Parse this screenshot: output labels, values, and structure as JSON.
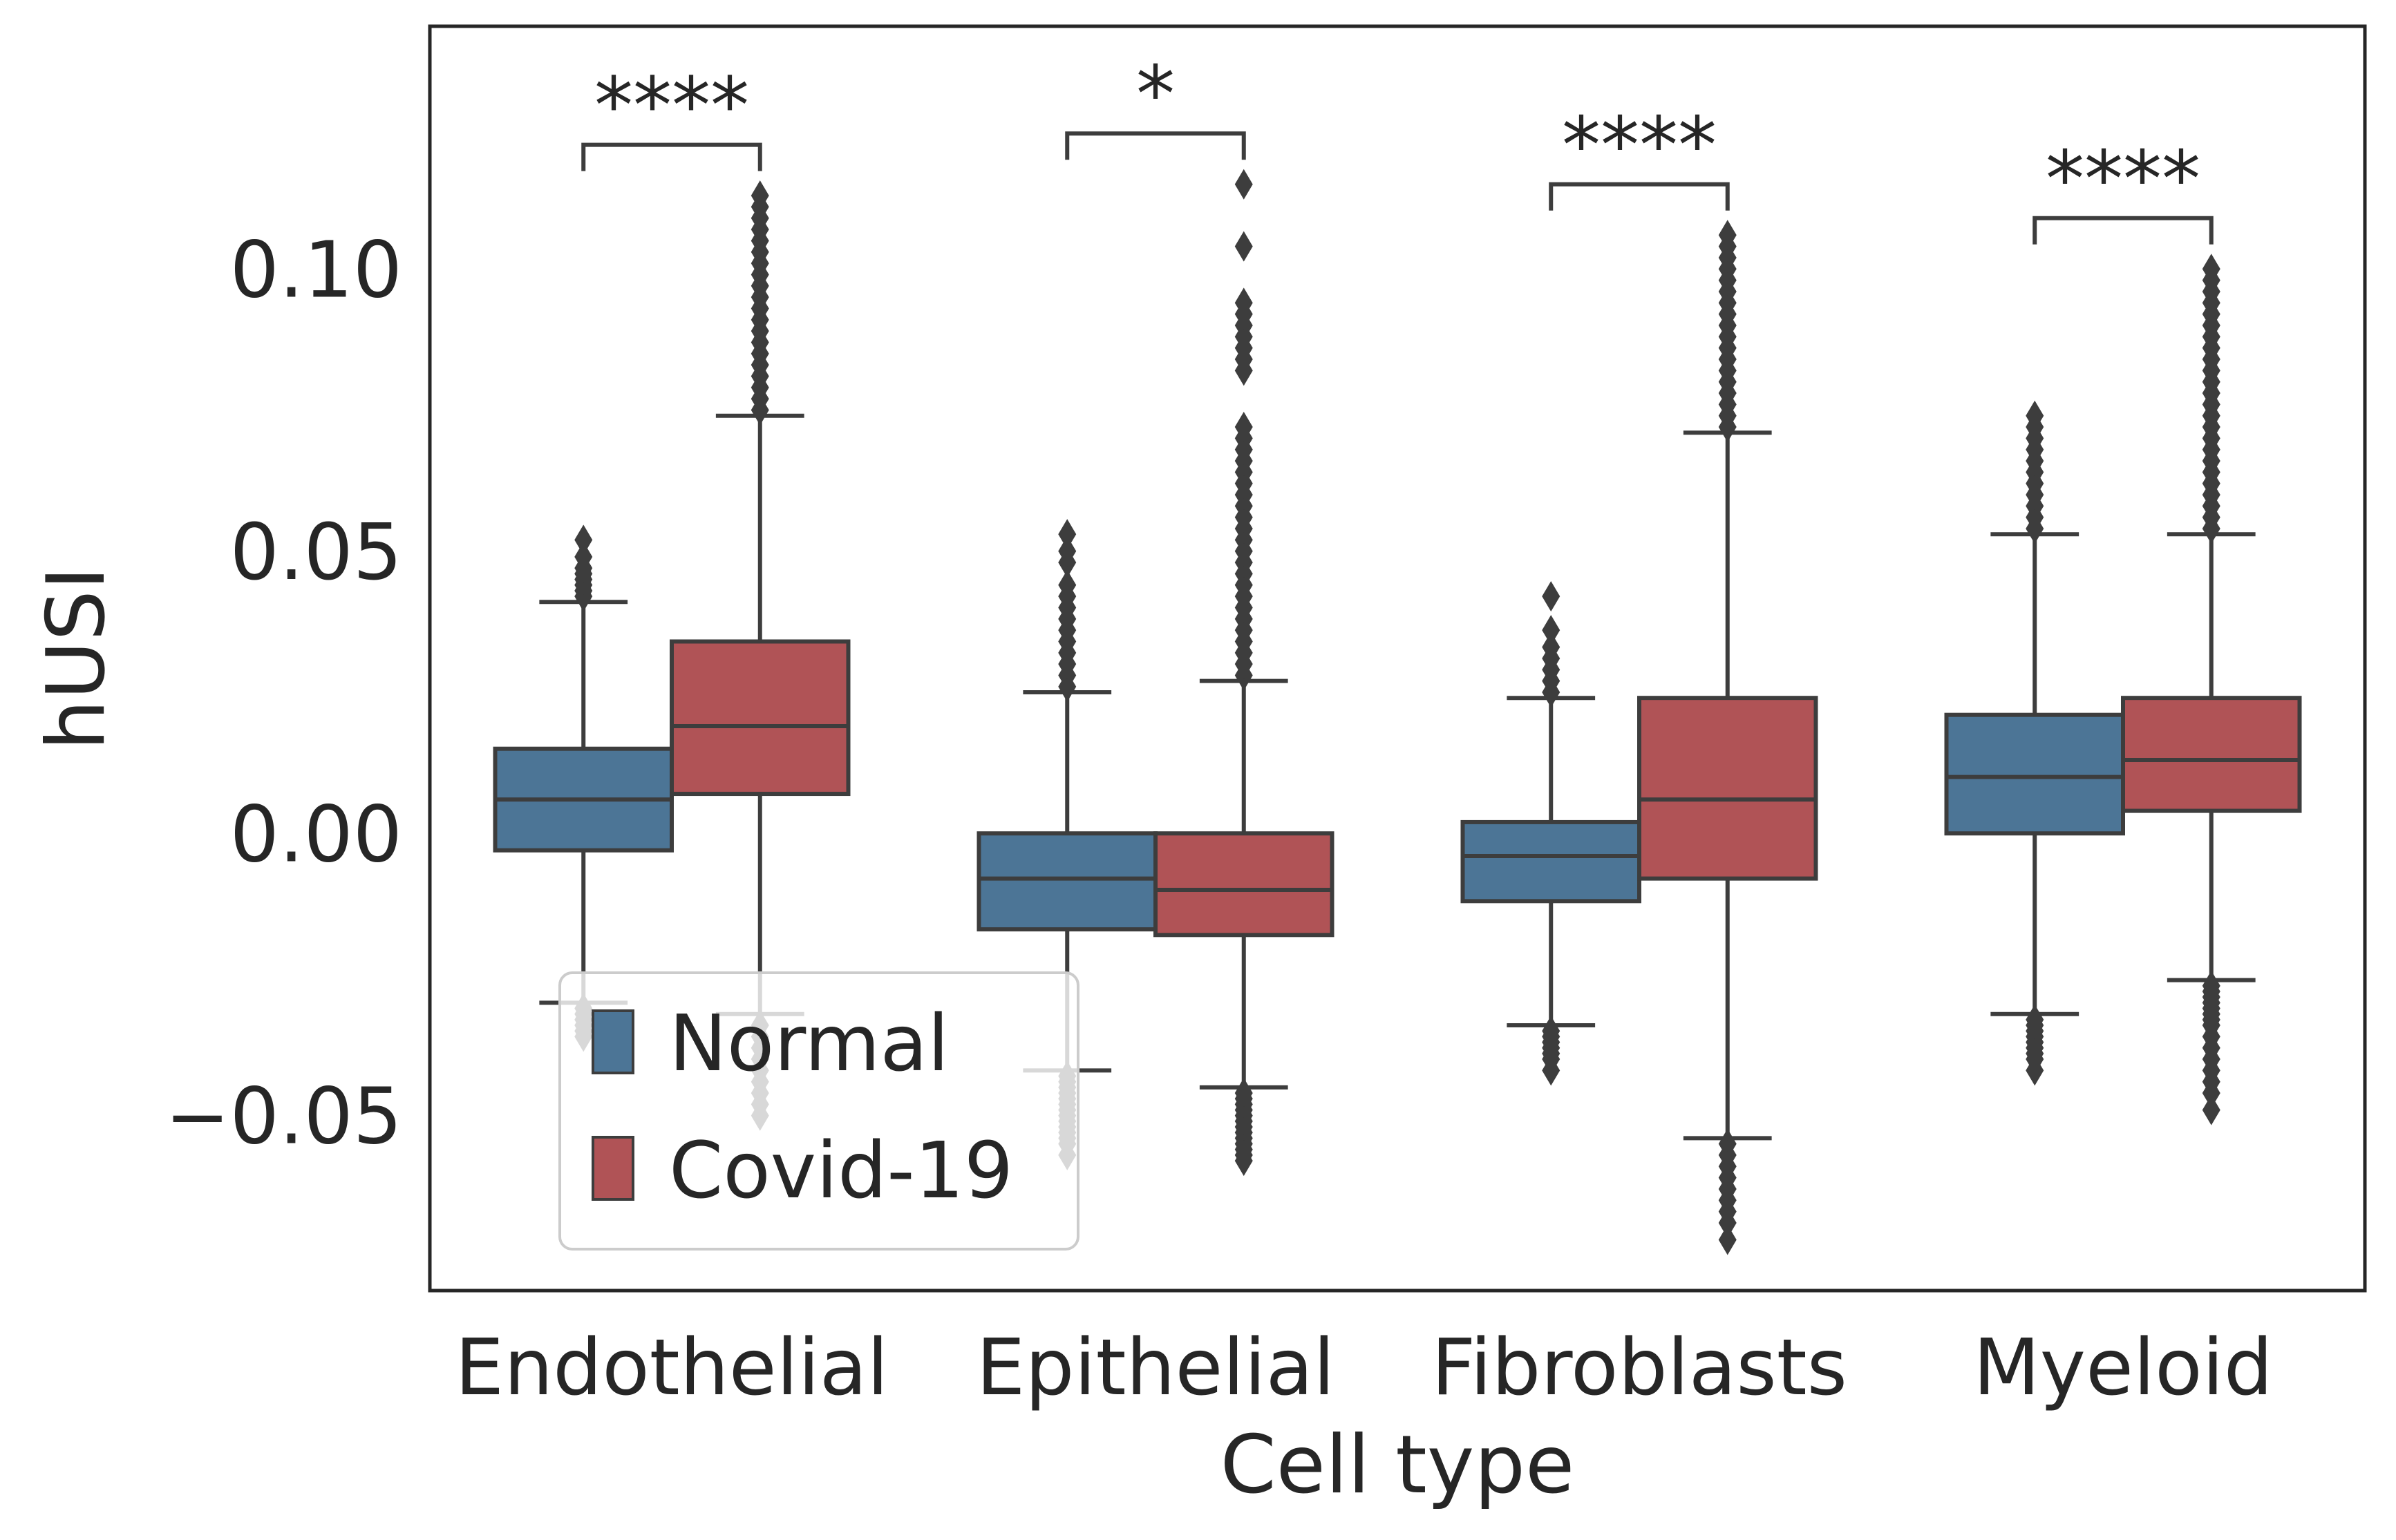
{
  "chart_data": {
    "type": "box",
    "xlabel": "Cell type",
    "ylabel": "hUSI",
    "ylim": [
      -0.081,
      0.143
    ],
    "yticks": [
      -0.05,
      0.0,
      0.05,
      0.1
    ],
    "ytick_labels": [
      "−0.05",
      "0.00",
      "0.05",
      "0.10"
    ],
    "grid": false,
    "legend": {
      "placement": "lower-left"
    },
    "categories": [
      "Endothelial",
      "Epithelial",
      "Fibroblasts",
      "Myeloid"
    ],
    "series": [
      {
        "name": "Normal",
        "color": "#4c7596",
        "boxes": [
          {
            "whisker_low": -0.03,
            "q1": -0.003,
            "median": 0.006,
            "q3": 0.015,
            "whisker_high": 0.041,
            "outliers_high": [
              0.042,
              0.043,
              0.044,
              0.045,
              0.046,
              0.047,
              0.049,
              0.052
            ],
            "outliers_low": [
              -0.031,
              -0.032,
              -0.033,
              -0.034,
              -0.035,
              -0.036
            ]
          },
          {
            "whisker_low": -0.042,
            "q1": -0.017,
            "median": -0.008,
            "q3": 0.0,
            "whisker_high": 0.025,
            "outliers_high": [
              0.026,
              0.028,
              0.03,
              0.032,
              0.034,
              0.036,
              0.038,
              0.04,
              0.042,
              0.044,
              0.048,
              0.05,
              0.053
            ],
            "outliers_low": [
              -0.043,
              -0.044,
              -0.045,
              -0.046,
              -0.047,
              -0.048,
              -0.049,
              -0.05,
              -0.051,
              -0.052,
              -0.053,
              -0.054,
              -0.055,
              -0.057
            ]
          },
          {
            "whisker_low": -0.034,
            "q1": -0.012,
            "median": -0.004,
            "q3": 0.002,
            "whisker_high": 0.024,
            "outliers_high": [
              0.025,
              0.027,
              0.029,
              0.031,
              0.033,
              0.036,
              0.042
            ],
            "outliers_low": [
              -0.035,
              -0.036,
              -0.037,
              -0.038,
              -0.039,
              -0.04,
              -0.042
            ]
          },
          {
            "whisker_low": -0.032,
            "q1": 0.0,
            "median": 0.01,
            "q3": 0.021,
            "whisker_high": 0.053,
            "outliers_high": [
              0.054,
              0.056,
              0.058,
              0.06,
              0.062,
              0.064,
              0.066,
              0.068,
              0.07,
              0.072,
              0.074
            ],
            "outliers_low": [
              -0.033,
              -0.034,
              -0.035,
              -0.036,
              -0.037,
              -0.038,
              -0.039,
              -0.04,
              -0.042
            ]
          }
        ]
      },
      {
        "name": "Covid-19",
        "color": "#b05356",
        "boxes": [
          {
            "whisker_low": -0.032,
            "q1": 0.007,
            "median": 0.019,
            "q3": 0.034,
            "whisker_high": 0.074,
            "outliers_high": [
              0.075,
              0.077,
              0.079,
              0.081,
              0.083,
              0.085,
              0.087,
              0.089,
              0.091,
              0.093,
              0.095,
              0.097,
              0.099,
              0.101,
              0.103,
              0.105,
              0.107,
              0.109,
              0.111,
              0.113
            ],
            "outliers_low": [
              -0.034,
              -0.036,
              -0.038,
              -0.04,
              -0.042,
              -0.044,
              -0.046,
              -0.048,
              -0.05
            ]
          },
          {
            "whisker_low": -0.045,
            "q1": -0.018,
            "median": -0.01,
            "q3": 0.0,
            "whisker_high": 0.027,
            "outliers_high": [
              0.028,
              0.03,
              0.032,
              0.034,
              0.036,
              0.038,
              0.04,
              0.042,
              0.044,
              0.046,
              0.048,
              0.05,
              0.052,
              0.054,
              0.056,
              0.058,
              0.06,
              0.062,
              0.064,
              0.066,
              0.068,
              0.07,
              0.072,
              0.082,
              0.084,
              0.086,
              0.088,
              0.09,
              0.092,
              0.094,
              0.104,
              0.115
            ],
            "outliers_low": [
              -0.046,
              -0.047,
              -0.048,
              -0.049,
              -0.05,
              -0.051,
              -0.052,
              -0.053,
              -0.054,
              -0.055,
              -0.056,
              -0.057,
              -0.058
            ]
          },
          {
            "whisker_low": -0.054,
            "q1": -0.008,
            "median": 0.006,
            "q3": 0.024,
            "whisker_high": 0.071,
            "outliers_high": [
              0.072,
              0.074,
              0.076,
              0.078,
              0.08,
              0.082,
              0.084,
              0.086,
              0.088,
              0.09,
              0.092,
              0.094,
              0.096,
              0.098,
              0.1,
              0.102,
              0.104,
              0.106
            ],
            "outliers_low": [
              -0.055,
              -0.057,
              -0.059,
              -0.061,
              -0.063,
              -0.065,
              -0.067,
              -0.069,
              -0.072
            ]
          },
          {
            "whisker_low": -0.026,
            "q1": 0.004,
            "median": 0.013,
            "q3": 0.024,
            "whisker_high": 0.053,
            "outliers_high": [
              0.054,
              0.056,
              0.058,
              0.06,
              0.062,
              0.064,
              0.066,
              0.068,
              0.07,
              0.072,
              0.074,
              0.076,
              0.078,
              0.08,
              0.082,
              0.084,
              0.086,
              0.088,
              0.09,
              0.092,
              0.094,
              0.096,
              0.098,
              0.1
            ],
            "outliers_low": [
              -0.027,
              -0.028,
              -0.029,
              -0.03,
              -0.031,
              -0.032,
              -0.033,
              -0.034,
              -0.036,
              -0.038,
              -0.04,
              -0.042,
              -0.044,
              -0.046,
              -0.049
            ]
          }
        ]
      }
    ],
    "annotations": [
      {
        "category": "Endothelial",
        "text": "****",
        "bracket_y": 0.122
      },
      {
        "category": "Epithelial",
        "text": "*",
        "bracket_y": 0.124
      },
      {
        "category": "Fibroblasts",
        "text": "****",
        "bracket_y": 0.115
      },
      {
        "category": "Myeloid",
        "text": "****",
        "bracket_y": 0.109
      }
    ]
  }
}
